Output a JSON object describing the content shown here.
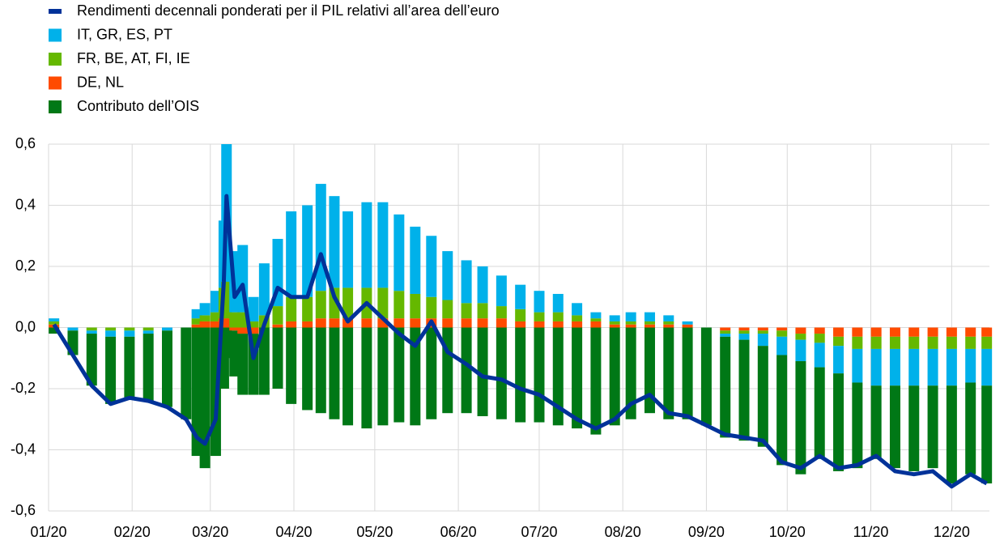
{
  "chart_data": {
    "type": "bar",
    "stacked": true,
    "xlim": [
      0,
      349
    ],
    "xticks": [
      {
        "value": 0,
        "label": "01/20"
      },
      {
        "value": 31,
        "label": "02/20"
      },
      {
        "value": 60,
        "label": "03/20"
      },
      {
        "value": 91,
        "label": "04/20"
      },
      {
        "value": 121,
        "label": "05/20"
      },
      {
        "value": 152,
        "label": "06/20"
      },
      {
        "value": 182,
        "label": "07/20"
      },
      {
        "value": 213,
        "label": "08/20"
      },
      {
        "value": 244,
        "label": "09/20"
      },
      {
        "value": 274,
        "label": "10/20"
      },
      {
        "value": 305,
        "label": "11/20"
      },
      {
        "value": 335,
        "label": "12/20"
      }
    ],
    "ylim": [
      -0.6,
      0.6
    ],
    "yticks": [
      {
        "value": -0.6,
        "label": "-0,6"
      },
      {
        "value": -0.4,
        "label": "-0,4"
      },
      {
        "value": -0.2,
        "label": "-0,2"
      },
      {
        "value": 0,
        "label": "0,0"
      },
      {
        "value": 0.2,
        "label": "0,2"
      },
      {
        "value": 0.4,
        "label": "0,4"
      },
      {
        "value": 0.6,
        "label": "0,6"
      }
    ],
    "grid": true,
    "x": [
      2,
      9,
      16,
      23,
      30,
      37,
      44,
      51,
      55,
      58,
      62,
      65,
      66,
      69,
      72,
      76,
      80,
      85,
      90,
      96,
      101,
      106,
      111,
      118,
      124,
      130,
      136,
      142,
      148,
      155,
      161,
      168,
      175,
      182,
      189,
      196,
      203,
      210,
      216,
      223,
      230,
      237,
      244,
      251,
      258,
      265,
      272,
      279,
      286,
      293,
      300,
      307,
      314,
      321,
      328,
      335,
      342,
      348
    ],
    "series": [
      {
        "name": "Rendimenti decennali ponderati per il PIL relativi all’area dell’euro",
        "type": "line",
        "color": "#003299",
        "values": [
          0.01,
          -0.09,
          -0.19,
          -0.25,
          -0.23,
          -0.24,
          -0.26,
          -0.3,
          -0.36,
          -0.38,
          -0.3,
          0.15,
          0.43,
          0.1,
          0.14,
          -0.1,
          0.01,
          0.13,
          0.1,
          0.1,
          0.24,
          0.1,
          0.02,
          0.08,
          0.03,
          -0.02,
          -0.06,
          0.02,
          -0.08,
          -0.12,
          -0.16,
          -0.17,
          -0.2,
          -0.22,
          -0.26,
          -0.3,
          -0.33,
          -0.3,
          -0.25,
          -0.22,
          -0.28,
          -0.29,
          -0.32,
          -0.35,
          -0.36,
          -0.37,
          -0.44,
          -0.46,
          -0.42,
          -0.46,
          -0.45,
          -0.42,
          -0.47,
          -0.48,
          -0.47,
          -0.52,
          -0.48,
          -0.51
        ]
      },
      {
        "name": "IT, GR, ES, PT",
        "color": "#00b1ea",
        "values": [
          0.01,
          -0.01,
          -0.01,
          -0.02,
          -0.02,
          -0.01,
          -0.01,
          0,
          0.03,
          0.04,
          0.07,
          0.22,
          0.45,
          0.2,
          0.22,
          0.08,
          0.17,
          0.22,
          0.28,
          0.3,
          0.35,
          0.3,
          0.25,
          0.28,
          0.28,
          0.25,
          0.22,
          0.2,
          0.16,
          0.14,
          0.12,
          0.1,
          0.08,
          0.07,
          0.06,
          0.04,
          0.02,
          0.02,
          0.03,
          0.03,
          0.02,
          0.01,
          0,
          -0.01,
          -0.02,
          -0.04,
          -0.06,
          -0.07,
          -0.08,
          -0.09,
          -0.11,
          -0.12,
          -0.12,
          -0.12,
          -0.12,
          -0.12,
          -0.11,
          -0.12
        ]
      },
      {
        "name": "FR, BE, AT, FI, IE",
        "color": "#65b800",
        "values": [
          0.01,
          0,
          -0.01,
          -0.01,
          -0.01,
          -0.01,
          0,
          0,
          0.02,
          0.02,
          0.03,
          0.1,
          0.12,
          0.05,
          0.05,
          0.02,
          0.04,
          0.06,
          0.08,
          0.08,
          0.09,
          0.1,
          0.1,
          0.1,
          0.1,
          0.09,
          0.08,
          0.07,
          0.06,
          0.05,
          0.05,
          0.04,
          0.04,
          0.03,
          0.03,
          0.02,
          0.01,
          0.01,
          0.01,
          0.01,
          0.01,
          0,
          0,
          -0.01,
          -0.01,
          -0.01,
          -0.02,
          -0.02,
          -0.03,
          -0.03,
          -0.04,
          -0.04,
          -0.04,
          -0.04,
          -0.04,
          -0.04,
          -0.04,
          -0.04
        ]
      },
      {
        "name": "DE, NL",
        "color": "#ff4b00",
        "values": [
          0.01,
          0,
          0,
          0,
          0,
          0,
          0,
          0,
          0.01,
          0.02,
          0.02,
          0.03,
          0.03,
          -0.01,
          -0.02,
          -0.02,
          0,
          0.01,
          0.02,
          0.02,
          0.03,
          0.03,
          0.03,
          0.03,
          0.03,
          0.03,
          0.03,
          0.03,
          0.03,
          0.03,
          0.03,
          0.03,
          0.02,
          0.02,
          0.02,
          0.02,
          0.02,
          0.01,
          0.01,
          0.01,
          0.01,
          0.01,
          0,
          -0.01,
          -0.01,
          -0.01,
          -0.01,
          -0.02,
          -0.02,
          -0.03,
          -0.03,
          -0.03,
          -0.03,
          -0.03,
          -0.03,
          -0.03,
          -0.03,
          -0.03
        ]
      },
      {
        "name": "Contributo dell’OIS",
        "color": "#007816",
        "values": [
          -0.02,
          -0.08,
          -0.17,
          -0.22,
          -0.2,
          -0.22,
          -0.25,
          -0.3,
          -0.42,
          -0.46,
          -0.42,
          -0.2,
          -0.1,
          -0.15,
          -0.2,
          -0.2,
          -0.22,
          -0.2,
          -0.25,
          -0.27,
          -0.28,
          -0.3,
          -0.32,
          -0.33,
          -0.32,
          -0.31,
          -0.32,
          -0.3,
          -0.28,
          -0.28,
          -0.29,
          -0.3,
          -0.31,
          -0.31,
          -0.32,
          -0.33,
          -0.35,
          -0.32,
          -0.3,
          -0.28,
          -0.3,
          -0.3,
          -0.32,
          -0.33,
          -0.33,
          -0.33,
          -0.36,
          -0.37,
          -0.3,
          -0.32,
          -0.28,
          -0.24,
          -0.27,
          -0.28,
          -0.27,
          -0.32,
          -0.3,
          -0.32
        ]
      }
    ]
  }
}
